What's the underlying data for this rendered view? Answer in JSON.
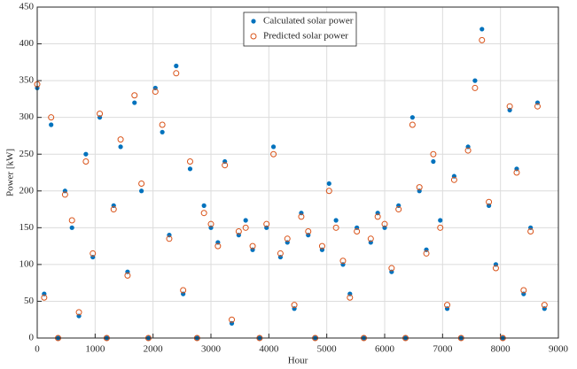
{
  "chart_data": {
    "type": "scatter",
    "xlabel": "Hour",
    "ylabel": "Power [kW]",
    "x": [
      0,
      120,
      240,
      360,
      480,
      600,
      720,
      840,
      960,
      1080,
      1200,
      1320,
      1440,
      1560,
      1680,
      1800,
      1920,
      2040,
      2160,
      2280,
      2400,
      2520,
      2640,
      2760,
      2880,
      3000,
      3120,
      3240,
      3360,
      3480,
      3600,
      3720,
      3840,
      3960,
      4080,
      4200,
      4320,
      4440,
      4560,
      4680,
      4800,
      4920,
      5040,
      5160,
      5280,
      5400,
      5520,
      5640,
      5760,
      5880,
      6000,
      6120,
      6240,
      6360,
      6480,
      6600,
      6720,
      6840,
      6960,
      7080,
      7200,
      7320,
      7440,
      7560,
      7680,
      7800,
      7920,
      8040,
      8160,
      8280,
      8400,
      8520,
      8640,
      8760
    ],
    "series": [
      {
        "name": "Calculated solar power",
        "color": "#0072bd",
        "values": [
          340,
          60,
          290,
          0,
          200,
          150,
          30,
          250,
          110,
          300,
          0,
          180,
          260,
          90,
          320,
          200,
          0,
          340,
          280,
          140,
          370,
          60,
          230,
          0,
          180,
          150,
          130,
          240,
          20,
          140,
          160,
          120,
          0,
          150,
          260,
          110,
          130,
          40,
          170,
          140,
          0,
          120,
          210,
          160,
          100,
          60,
          150,
          0,
          130,
          170,
          150,
          90,
          180,
          0,
          300,
          200,
          120,
          240,
          160,
          40,
          220,
          0,
          260,
          350,
          420,
          180,
          100,
          0,
          310,
          230,
          60,
          150,
          320,
          40
        ]
      },
      {
        "name": "Predicted solar power",
        "color": "#d95319",
        "values": [
          345,
          55,
          300,
          0,
          195,
          160,
          35,
          240,
          115,
          305,
          0,
          175,
          270,
          85,
          330,
          210,
          0,
          335,
          290,
          135,
          360,
          65,
          240,
          0,
          170,
          155,
          125,
          235,
          25,
          145,
          150,
          125,
          0,
          155,
          250,
          115,
          135,
          45,
          165,
          145,
          0,
          125,
          200,
          150,
          105,
          55,
          145,
          0,
          135,
          165,
          155,
          95,
          175,
          0,
          290,
          205,
          115,
          250,
          150,
          45,
          215,
          0,
          255,
          340,
          405,
          185,
          95,
          0,
          315,
          225,
          65,
          145,
          315,
          45
        ]
      }
    ],
    "xlim": [
      0,
      9000
    ],
    "ylim": [
      0,
      450
    ],
    "xticks": [
      0,
      1000,
      2000,
      3000,
      4000,
      5000,
      6000,
      7000,
      8000,
      9000
    ],
    "yticks": [
      0,
      50,
      100,
      150,
      200,
      250,
      300,
      350,
      400,
      450
    ],
    "grid": true,
    "legend": "top"
  }
}
